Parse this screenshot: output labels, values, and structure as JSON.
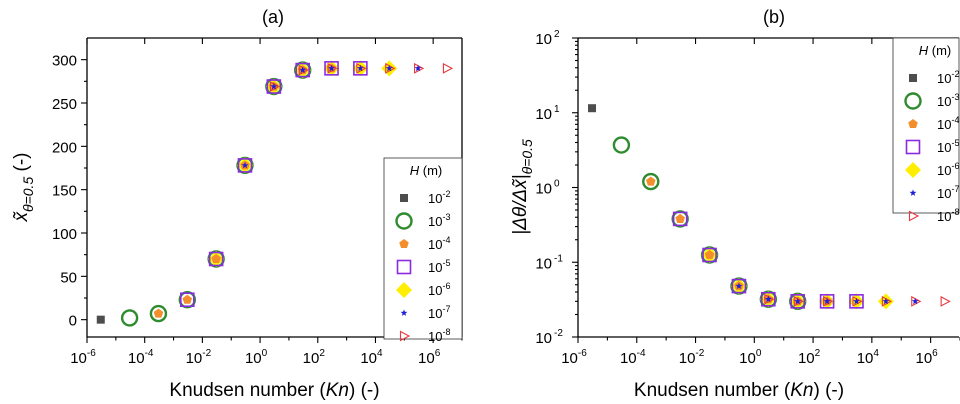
{
  "chart_data": [
    {
      "panel": "(a)",
      "type": "scatter",
      "xlabel_parts": [
        "Knudsen number (",
        "Kn",
        ") (-)"
      ],
      "ylabel": "x̃θ=0.5 (-)",
      "ylabel_main": "x̃",
      "ylabel_sub": "θ=0.5",
      "ylabel_tail": " (-)",
      "x_scale": "log",
      "y_scale": "linear",
      "xlim": [
        1e-06,
        10000000.0
      ],
      "ylim": [
        -20,
        325
      ],
      "x_ticks": [
        {
          "value": 1e-06,
          "base": "10",
          "exp": "-6"
        },
        {
          "value": 0.0001,
          "base": "10",
          "exp": "-4"
        },
        {
          "value": 0.01,
          "base": "10",
          "exp": "-2"
        },
        {
          "value": 1,
          "base": "10",
          "exp": "0"
        },
        {
          "value": 100.0,
          "base": "10",
          "exp": "2"
        },
        {
          "value": 10000.0,
          "base": "10",
          "exp": "4"
        },
        {
          "value": 1000000.0,
          "base": "10",
          "exp": "6"
        }
      ],
      "y_ticks": [
        {
          "value": 0,
          "label": "0"
        },
        {
          "value": 50,
          "label": "50"
        },
        {
          "value": 100,
          "label": "100"
        },
        {
          "value": 150,
          "label": "150"
        },
        {
          "value": 200,
          "label": "200"
        },
        {
          "value": 250,
          "label": "250"
        },
        {
          "value": 300,
          "label": "300"
        }
      ],
      "legend": {
        "placement": "lower-right",
        "title_main": "H",
        "title_unit": " (m)"
      },
      "series": [
        {
          "name": "10-2",
          "label_base": "10",
          "label_exp": "-2",
          "marker": "square",
          "color": "#4d4d4d",
          "x": [
            3e-06
          ],
          "y": [
            0
          ]
        },
        {
          "name": "10-3",
          "label_base": "10",
          "label_exp": "-3",
          "marker": "circle-open",
          "color": "#2e8b2e",
          "x": [
            3e-05,
            0.0003,
            0.003,
            0.03,
            0.3,
            3,
            30
          ],
          "y": [
            2,
            7,
            23,
            70,
            178,
            269,
            288
          ]
        },
        {
          "name": "10-4",
          "label_base": "10",
          "label_exp": "-4",
          "marker": "pentagon",
          "color": "#f28e2b",
          "x": [
            0.0003,
            0.003,
            0.03,
            0.3,
            3,
            30,
            300
          ],
          "y": [
            7,
            23,
            70,
            178,
            269,
            288,
            290
          ]
        },
        {
          "name": "10-5",
          "label_base": "10",
          "label_exp": "-5",
          "marker": "square-open",
          "color": "#8a2be2",
          "x": [
            0.003,
            0.03,
            0.3,
            3,
            30,
            300,
            3000
          ],
          "y": [
            23,
            70,
            178,
            269,
            288,
            290,
            290
          ]
        },
        {
          "name": "10-6",
          "label_base": "10",
          "label_exp": "-6",
          "marker": "diamond",
          "color": "#ffee00",
          "x": [
            0.03,
            0.3,
            3,
            30,
            300,
            3000,
            30000
          ],
          "y": [
            70,
            178,
            269,
            288,
            290,
            290,
            290
          ]
        },
        {
          "name": "10-7",
          "label_base": "10",
          "label_exp": "-7",
          "marker": "star",
          "color": "#1f1fd6",
          "x": [
            0.3,
            3,
            30,
            300,
            3000,
            30000,
            300000
          ],
          "y": [
            178,
            269,
            288,
            290,
            290,
            290,
            290
          ]
        },
        {
          "name": "10-8",
          "label_base": "10",
          "label_exp": "-8",
          "marker": "triangle-right-open",
          "color": "#e8383d",
          "x": [
            3,
            30,
            300,
            3000,
            30000,
            300000,
            3000000
          ],
          "y": [
            269,
            288,
            290,
            290,
            290,
            290,
            290
          ]
        }
      ]
    },
    {
      "panel": "(b)",
      "type": "scatter",
      "xlabel_parts": [
        "Knudsen number (",
        "Kn",
        ") (-)"
      ],
      "ylabel": "|Δθ/Δx̃|θ=0.5",
      "ylabel_main": "|Δθ/Δx̃|",
      "ylabel_sub": "θ=0.5",
      "x_scale": "log",
      "y_scale": "log",
      "xlim": [
        1e-06,
        10000000.0
      ],
      "ylim": [
        0.01,
        100
      ],
      "x_ticks": [
        {
          "value": 1e-06,
          "base": "10",
          "exp": "-6"
        },
        {
          "value": 0.0001,
          "base": "10",
          "exp": "-4"
        },
        {
          "value": 0.01,
          "base": "10",
          "exp": "-2"
        },
        {
          "value": 1,
          "base": "10",
          "exp": "0"
        },
        {
          "value": 100.0,
          "base": "10",
          "exp": "2"
        },
        {
          "value": 10000.0,
          "base": "10",
          "exp": "4"
        },
        {
          "value": 1000000.0,
          "base": "10",
          "exp": "6"
        }
      ],
      "y_ticks": [
        {
          "value": 0.01,
          "base": "10",
          "exp": "-2"
        },
        {
          "value": 0.1,
          "base": "10",
          "exp": "-1"
        },
        {
          "value": 1,
          "base": "10",
          "exp": "0"
        },
        {
          "value": 10,
          "base": "10",
          "exp": "1"
        },
        {
          "value": 100,
          "base": "10",
          "exp": "2"
        }
      ],
      "legend": {
        "placement": "upper-right",
        "title_main": "H",
        "title_unit": " (m)"
      },
      "series": [
        {
          "name": "10-2",
          "label_base": "10",
          "label_exp": "-2",
          "marker": "square",
          "color": "#4d4d4d",
          "x": [
            3e-06
          ],
          "y": [
            11.5
          ]
        },
        {
          "name": "10-3",
          "label_base": "10",
          "label_exp": "-3",
          "marker": "circle-open",
          "color": "#2e8b2e",
          "x": [
            3e-05,
            0.0003,
            0.003,
            0.03,
            0.3,
            3,
            30
          ],
          "y": [
            3.7,
            1.2,
            0.38,
            0.125,
            0.048,
            0.032,
            0.03
          ]
        },
        {
          "name": "10-4",
          "label_base": "10",
          "label_exp": "-4",
          "marker": "pentagon",
          "color": "#f28e2b",
          "x": [
            0.0003,
            0.003,
            0.03,
            0.3,
            3,
            30,
            300
          ],
          "y": [
            1.2,
            0.38,
            0.125,
            0.048,
            0.032,
            0.03,
            0.03
          ]
        },
        {
          "name": "10-5",
          "label_base": "10",
          "label_exp": "-5",
          "marker": "square-open",
          "color": "#8a2be2",
          "x": [
            0.003,
            0.03,
            0.3,
            3,
            30,
            300,
            3000
          ],
          "y": [
            0.38,
            0.125,
            0.048,
            0.032,
            0.03,
            0.03,
            0.03
          ]
        },
        {
          "name": "10-6",
          "label_base": "10",
          "label_exp": "-6",
          "marker": "diamond",
          "color": "#ffee00",
          "x": [
            0.03,
            0.3,
            3,
            30,
            300,
            3000,
            30000
          ],
          "y": [
            0.125,
            0.048,
            0.032,
            0.03,
            0.03,
            0.03,
            0.03
          ]
        },
        {
          "name": "10-7",
          "label_base": "10",
          "label_exp": "-7",
          "marker": "star",
          "color": "#1f1fd6",
          "x": [
            0.3,
            3,
            30,
            300,
            3000,
            30000,
            300000
          ],
          "y": [
            0.048,
            0.032,
            0.03,
            0.03,
            0.03,
            0.03,
            0.03
          ]
        },
        {
          "name": "10-8",
          "label_base": "10",
          "label_exp": "-8",
          "marker": "triangle-right-open",
          "color": "#e8383d",
          "x": [
            3,
            30,
            300,
            3000,
            30000,
            300000,
            3000000
          ],
          "y": [
            0.032,
            0.03,
            0.03,
            0.03,
            0.03,
            0.03,
            0.03
          ]
        }
      ]
    }
  ]
}
